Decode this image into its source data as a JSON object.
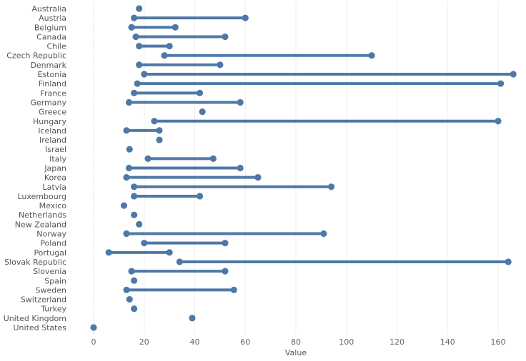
{
  "chart_data": {
    "type": "dumbbell",
    "xlabel": "Value",
    "ylabel": "",
    "xlim": [
      0,
      165
    ],
    "xticks": [
      0,
      20,
      40,
      60,
      80,
      100,
      120,
      140,
      160
    ],
    "grid": true,
    "color": "#4e79a7",
    "categories": [
      "Australia",
      "Austria",
      "Belgium",
      "Canada",
      "Chile",
      "Czech Republic",
      "Denmark",
      "Estonia",
      "Finland",
      "France",
      "Germany",
      "Greece",
      "Hungary",
      "Iceland",
      "Ireland",
      "Israel",
      "Italy",
      "Japan",
      "Korea",
      "Latvia",
      "Luxembourg",
      "Mexico",
      "Netherlands",
      "New Zealand",
      "Norway",
      "Poland",
      "Portugal",
      "Slovak Republic",
      "Slovenia",
      "Spain",
      "Sweden",
      "Switzerland",
      "Turkey",
      "United Kingdom",
      "United States"
    ],
    "low": [
      18,
      16,
      15,
      16.7,
      18,
      28,
      18,
      20,
      17.3,
      16,
      14,
      43,
      24,
      13,
      26,
      14.2,
      21.5,
      14,
      13,
      16,
      16,
      12,
      16,
      18,
      13,
      20,
      6,
      34,
      15,
      16,
      13,
      14.2,
      16,
      39,
      0
    ],
    "high": [
      18,
      60,
      32.3,
      52,
      30,
      110,
      50,
      166,
      161,
      42,
      58,
      43,
      160,
      26,
      26,
      14.2,
      47.3,
      58,
      65,
      94,
      42,
      12,
      16,
      18,
      91,
      52,
      30,
      164,
      52,
      16,
      55.5,
      14.2,
      16,
      39,
      0
    ]
  }
}
